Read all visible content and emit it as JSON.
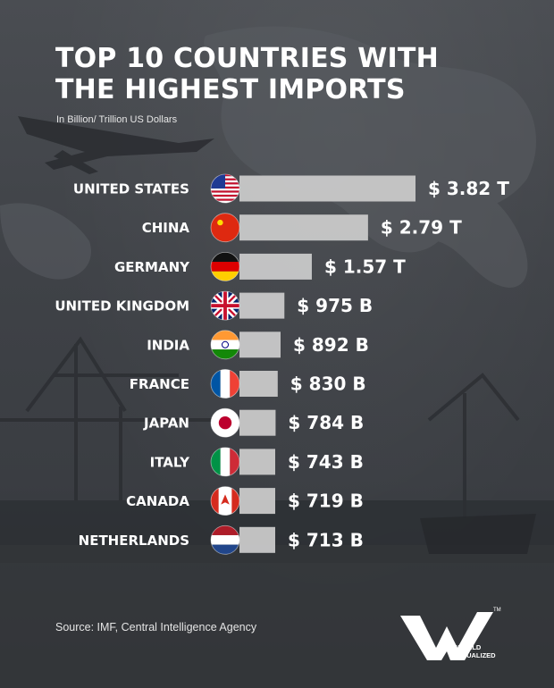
{
  "title_lines": [
    "TOP 10 COUNTRIES WITH",
    "THE HIGHEST IMPORTS"
  ],
  "subtitle": "In Billion/ Trillion US Dollars",
  "source": "Source: IMF, Central Intelligence Agency",
  "brand": {
    "lines": [
      "WORLD",
      "VISUALIZED"
    ],
    "tm": "TM"
  },
  "colors": {
    "bar": "#c9c9c9",
    "text": "#ffffff"
  },
  "chart_data": {
    "type": "bar",
    "orientation": "horizontal",
    "unit": "billion USD",
    "categories": [
      "UNITED STATES",
      "CHINA",
      "GERMANY",
      "UNITED KINGDOM",
      "INDIA",
      "FRANCE",
      "JAPAN",
      "ITALY",
      "CANADA",
      "NETHERLANDS"
    ],
    "values": [
      3820,
      2790,
      1570,
      975,
      892,
      830,
      784,
      743,
      719,
      713
    ],
    "value_labels": [
      "$ 3.82 T",
      "$ 2.79 T",
      "$ 1.57 T",
      "$ 975 B",
      "$ 892 B",
      "$ 830 B",
      "$ 784 B",
      "$ 743 B",
      "$ 719 B",
      "$ 713 B"
    ],
    "flags": [
      "us-flag-icon",
      "cn-flag-icon",
      "de-flag-icon",
      "gb-flag-icon",
      "in-flag-icon",
      "fr-flag-icon",
      "jp-flag-icon",
      "it-flag-icon",
      "ca-flag-icon",
      "nl-flag-icon"
    ]
  }
}
